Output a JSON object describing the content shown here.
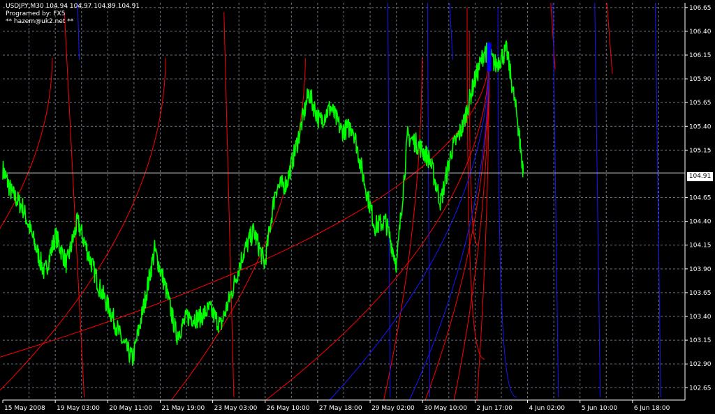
{
  "header": {
    "title": "USDJPY,M30  104.94 104.97 104.89 104.91",
    "credit": "Programed by: FX5",
    "contact": "** hazem@uk2.net **"
  },
  "price_tag": "104.91",
  "colors": {
    "background": "#000000",
    "grid": "#6b7581",
    "price": "#00ff00",
    "red_curves": "#ff0000",
    "blue_curves": "#1616ff",
    "blue_marker": "#0000ff",
    "current_line": "#c8c8c8",
    "axis_text": "#ffffff"
  },
  "chart_data": {
    "type": "line",
    "symbol": "USDJPY",
    "timeframe": "M30",
    "ylim": [
      102.52,
      106.7
    ],
    "y_ticks": [
      "106.65",
      "106.40",
      "106.15",
      "105.90",
      "105.65",
      "105.40",
      "105.15",
      "104.65",
      "104.40",
      "104.15",
      "103.90",
      "103.65",
      "103.40",
      "103.15",
      "102.90",
      "102.65"
    ],
    "x_ticks": [
      "15 May 2008",
      "19 May 03:00",
      "20 May 11:00",
      "21 May 19:00",
      "23 May 03:00",
      "26 May 10:00",
      "27 May 18:00",
      "29 May 02:00",
      "30 May 10:00",
      "2 Jun 17:00",
      "4 Jun 02:00",
      "5 Jun 10:00",
      "6 Jun 18:00"
    ],
    "current_price": 104.91,
    "grid": true,
    "series": [
      {
        "style": "price",
        "points": [
          [
            0,
            104.95
          ],
          [
            0.8,
            104.7
          ],
          [
            1.8,
            104.55
          ],
          [
            2.8,
            104.2
          ],
          [
            3.8,
            103.85
          ],
          [
            4.8,
            104.25
          ],
          [
            5.8,
            103.95
          ],
          [
            6.8,
            104.4
          ],
          [
            7.8,
            104.05
          ],
          [
            8.8,
            103.7
          ],
          [
            9.8,
            103.45
          ],
          [
            10.8,
            103.15
          ],
          [
            11.8,
            102.95
          ],
          [
            12.8,
            103.5
          ],
          [
            13.8,
            104.1
          ],
          [
            14.8,
            103.7
          ],
          [
            15.8,
            103.2
          ],
          [
            16.8,
            103.4
          ],
          [
            17.8,
            103.38
          ],
          [
            18.8,
            103.48
          ],
          [
            19.8,
            103.3
          ],
          [
            20.8,
            103.65
          ],
          [
            21.8,
            104.05
          ],
          [
            22.8,
            104.3
          ],
          [
            23.8,
            103.95
          ],
          [
            24.8,
            104.75
          ],
          [
            25.8,
            104.8
          ],
          [
            26.8,
            105.25
          ],
          [
            27.8,
            105.75
          ],
          [
            28.8,
            105.45
          ],
          [
            29.8,
            105.6
          ],
          [
            30.8,
            105.35
          ],
          [
            31.8,
            105.4
          ],
          [
            32.8,
            104.85
          ],
          [
            33.8,
            104.35
          ],
          [
            34.8,
            104.4
          ],
          [
            35.8,
            103.95
          ],
          [
            36.8,
            105.3
          ],
          [
            37.8,
            105.2
          ],
          [
            38.8,
            105.05
          ],
          [
            39.8,
            104.6
          ],
          [
            40.8,
            105.15
          ],
          [
            41.8,
            105.4
          ],
          [
            42.8,
            105.85
          ],
          [
            43.8,
            106.2
          ],
          [
            44.8,
            106.05
          ],
          [
            45.8,
            106.2
          ],
          [
            46.8,
            105.45
          ],
          [
            47.3,
            104.91
          ]
        ]
      },
      {
        "style": "red-curves",
        "members": [
          {
            "vertex_x": 4.5,
            "vertex_y": 106.15,
            "k": 0.65
          },
          {
            "vertex_x": 14.8,
            "vertex_y": 106.15,
            "k": 0.55
          },
          {
            "vertex_x": 27.5,
            "vertex_y": 106.15,
            "k": 0.42
          },
          {
            "vertex_x": 38.1,
            "vertex_y": 106.15,
            "k": 0.12
          },
          {
            "vertex_x": 44.2,
            "vertex_y": 106.15,
            "k": 0.0385
          },
          {
            "vertex_x": 44.2,
            "vertex_y": 106.15,
            "k": 0.11
          },
          {
            "vertex_x": 44.2,
            "vertex_y": 106.15,
            "k": 0.2
          },
          {
            "vertex_x": 44.2,
            "vertex_y": 106.15,
            "k": 0.7
          },
          {
            "vertex_x": 44.2,
            "vertex_y": 106.15,
            "k": 2.0
          }
        ],
        "lines": [
          {
            "x0": 5.6,
            "y0": 106.6,
            "x1": 7.4,
            "y1": 102.55
          },
          {
            "x0": 20.1,
            "y0": 106.6,
            "x1": 21.0,
            "y1": 102.55
          },
          {
            "x0": 49.8,
            "y0": 106.7,
            "x1": 50.2,
            "y1": 106.0
          },
          {
            "x0": 54.9,
            "y0": 106.7,
            "x1": 55.4,
            "y1": 105.95
          }
        ],
        "hooks": [
          {
            "x_top": 42.4,
            "y_top": 106.4,
            "x_bottom": 43.2,
            "y_bottom": 104.15
          },
          {
            "x_top": 42.2,
            "y_top": 106.65,
            "x_bottom": 43.8,
            "y_bottom": 102.95
          }
        ]
      },
      {
        "style": "blue-curves",
        "members": [
          {
            "vertex_x": 44.2,
            "vertex_y": 106.15,
            "k": 0.25
          },
          {
            "vertex_x": 44.2,
            "vertex_y": 106.15,
            "k": 0.5
          }
        ],
        "lines": [
          {
            "x0": 6.8,
            "y0": 106.7,
            "x1": 6.95,
            "y1": 106.1
          },
          {
            "x0": 35.0,
            "y0": 106.7,
            "x1": 35.2,
            "y1": 102.55
          },
          {
            "x0": 38.6,
            "y0": 106.7,
            "x1": 38.8,
            "y1": 102.55
          },
          {
            "x0": 40.6,
            "y0": 106.7,
            "x1": 40.9,
            "y1": 106.1
          },
          {
            "x0": 50.0,
            "y0": 106.7,
            "x1": 50.5,
            "y1": 102.55
          },
          {
            "x0": 53.8,
            "y0": 106.7,
            "x1": 54.3,
            "y1": 102.55
          },
          {
            "x0": 59.3,
            "y0": 106.7,
            "x1": 59.8,
            "y1": 102.55
          }
        ],
        "hooks": [
          {
            "x_top": 45.0,
            "y_top": 106.65,
            "x_bottom": 46.7,
            "y_bottom": 102.55
          }
        ]
      }
    ],
    "marker": {
      "x": 44.2,
      "y_top": 106.28,
      "y_bottom": 105.98
    }
  }
}
